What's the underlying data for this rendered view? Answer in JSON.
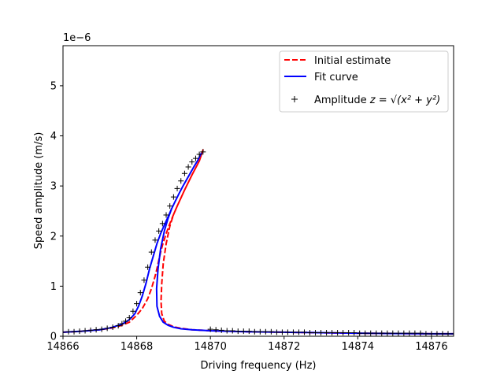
{
  "chart_data": {
    "type": "line",
    "title": "",
    "xlabel": "Driving frequency (Hz)",
    "ylabel": "Speed amplitude (m/s)",
    "y_multiplier_label": "1e−6",
    "xlim": [
      14866.0,
      14876.6
    ],
    "ylim": [
      0.0,
      5.8
    ],
    "xticks": [
      14866,
      14868,
      14870,
      14872,
      14874,
      14876
    ],
    "yticks": [
      0,
      1,
      2,
      3,
      4,
      5
    ],
    "y_unit_scale": "1e-6",
    "grid": false,
    "legend_placement": "upper right",
    "legend": {
      "initial": "Initial estimate",
      "fit": "Fit curve",
      "amp_prefix": "Amplitude ",
      "amp_math": "z = √(x² + y²)"
    },
    "series": [
      {
        "name": "Initial estimate",
        "style": "dashed",
        "color": "#ff0000",
        "x": [
          14866.0,
          14866.5,
          14867.0,
          14867.3,
          14867.6,
          14867.8,
          14868.0,
          14868.15,
          14868.3,
          14868.4,
          14868.5,
          14868.55,
          14868.6,
          14868.65,
          14868.7,
          14868.8,
          14868.9,
          14869.0,
          14869.1,
          14869.2,
          14869.3,
          14869.4,
          14869.5,
          14869.6,
          14869.7,
          14869.8,
          14869.7,
          14869.6,
          14869.5,
          14869.4,
          14869.3,
          14869.2,
          14869.1,
          14869.0,
          14868.9,
          14868.8,
          14868.72,
          14868.68,
          14868.66,
          14868.68,
          14868.75,
          14868.85,
          14869.0,
          14869.2,
          14869.5,
          14870.0,
          14871.0,
          14872.0,
          14873.0,
          14874.0,
          14875.0,
          14876.0,
          14876.6
        ],
        "y": [
          0.08,
          0.1,
          0.13,
          0.16,
          0.22,
          0.28,
          0.42,
          0.55,
          0.75,
          0.95,
          1.2,
          1.35,
          1.52,
          1.68,
          1.82,
          2.05,
          2.25,
          2.43,
          2.6,
          2.76,
          2.92,
          3.07,
          3.22,
          3.36,
          3.5,
          3.72,
          3.5,
          3.36,
          3.22,
          3.07,
          2.92,
          2.76,
          2.6,
          2.43,
          2.2,
          1.85,
          1.45,
          1.05,
          0.7,
          0.45,
          0.3,
          0.24,
          0.19,
          0.16,
          0.13,
          0.11,
          0.09,
          0.08,
          0.07,
          0.06,
          0.055,
          0.05,
          0.05
        ]
      },
      {
        "name": "Fit curve",
        "style": "solid",
        "color": "#0000ff",
        "x": [
          14866.0,
          14866.5,
          14867.0,
          14867.3,
          14867.6,
          14867.8,
          14867.95,
          14868.05,
          14868.15,
          14868.25,
          14868.35,
          14868.45,
          14868.55,
          14868.65,
          14868.75,
          14868.85,
          14868.95,
          14869.05,
          14869.15,
          14869.25,
          14869.35,
          14869.45,
          14869.55,
          14869.65,
          14869.75,
          14869.65,
          14869.55,
          14869.45,
          14869.35,
          14869.25,
          14869.15,
          14869.05,
          14868.95,
          14868.85,
          14868.75,
          14868.65,
          14868.58,
          14868.54,
          14868.55,
          14868.62,
          14868.72,
          14868.85,
          14869.0,
          14869.2,
          14869.5,
          14870.0,
          14871.0,
          14872.0,
          14873.0,
          14874.0,
          14875.0,
          14876.0,
          14876.6
        ],
        "y": [
          0.08,
          0.1,
          0.13,
          0.17,
          0.24,
          0.33,
          0.45,
          0.6,
          0.8,
          1.05,
          1.35,
          1.6,
          1.85,
          2.05,
          2.22,
          2.38,
          2.55,
          2.7,
          2.85,
          2.99,
          3.12,
          3.25,
          3.38,
          3.5,
          3.65,
          3.5,
          3.38,
          3.25,
          3.12,
          2.99,
          2.85,
          2.7,
          2.55,
          2.35,
          2.1,
          1.75,
          1.35,
          0.95,
          0.6,
          0.4,
          0.28,
          0.22,
          0.18,
          0.15,
          0.13,
          0.11,
          0.09,
          0.08,
          0.07,
          0.06,
          0.055,
          0.05,
          0.05
        ]
      },
      {
        "name": "Amplitude",
        "style": "marker-plus",
        "color": "#000000",
        "x": [
          14866.0,
          14866.15,
          14866.3,
          14866.45,
          14866.6,
          14866.75,
          14866.9,
          14867.05,
          14867.2,
          14867.35,
          14867.5,
          14867.6,
          14867.7,
          14867.8,
          14867.9,
          14868.0,
          14868.1,
          14868.2,
          14868.3,
          14868.4,
          14868.5,
          14868.6,
          14868.7,
          14868.8,
          14868.9,
          14869.0,
          14869.1,
          14869.2,
          14869.3,
          14869.4,
          14869.5,
          14869.6,
          14869.7,
          14869.8,
          14870.0,
          14870.15,
          14870.3,
          14870.45,
          14870.6,
          14870.75,
          14870.9,
          14871.05,
          14871.2,
          14871.35,
          14871.5,
          14871.65,
          14871.8,
          14871.95,
          14872.1,
          14872.25,
          14872.4,
          14872.55,
          14872.7,
          14872.85,
          14873.0,
          14873.15,
          14873.3,
          14873.45,
          14873.6,
          14873.75,
          14873.9,
          14874.05,
          14874.2,
          14874.35,
          14874.5,
          14874.65,
          14874.8,
          14874.95,
          14875.1,
          14875.25,
          14875.4,
          14875.55,
          14875.7,
          14875.85,
          14876.0,
          14876.15,
          14876.3,
          14876.45,
          14876.6
        ],
        "y": [
          0.08,
          0.09,
          0.09,
          0.1,
          0.11,
          0.12,
          0.13,
          0.14,
          0.16,
          0.18,
          0.21,
          0.25,
          0.3,
          0.37,
          0.5,
          0.65,
          0.87,
          1.12,
          1.38,
          1.68,
          1.92,
          2.1,
          2.25,
          2.42,
          2.6,
          2.78,
          2.95,
          3.1,
          3.25,
          3.38,
          3.48,
          3.55,
          3.63,
          3.68,
          0.14,
          0.13,
          0.12,
          0.11,
          0.11,
          0.1,
          0.1,
          0.1,
          0.09,
          0.09,
          0.09,
          0.09,
          0.08,
          0.08,
          0.08,
          0.08,
          0.08,
          0.08,
          0.07,
          0.07,
          0.07,
          0.07,
          0.07,
          0.07,
          0.07,
          0.07,
          0.07,
          0.06,
          0.06,
          0.06,
          0.06,
          0.06,
          0.06,
          0.06,
          0.06,
          0.06,
          0.06,
          0.06,
          0.06,
          0.05,
          0.05,
          0.05,
          0.05,
          0.05,
          0.05
        ]
      }
    ]
  }
}
